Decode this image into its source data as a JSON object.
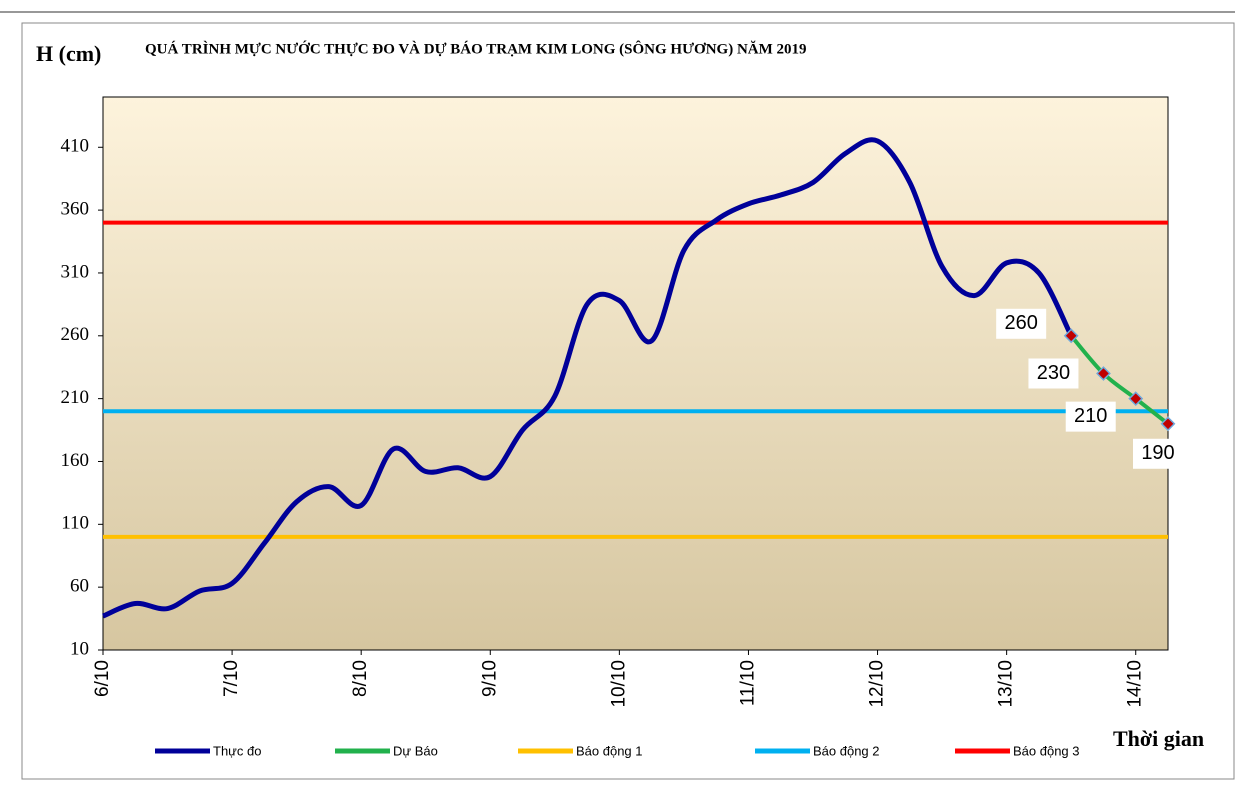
{
  "chart_data": {
    "type": "line",
    "title": "QUÁ TRÌNH MỰC NƯỚC THỰC ĐO VÀ DỰ BÁO TRẠM KIM LONG (SÔNG HƯƠNG) NĂM 2019",
    "y_label": "H (cm)",
    "x_label": "Thời gian",
    "categories": [
      "6/10",
      null,
      null,
      null,
      "7/10",
      null,
      null,
      null,
      "8/10",
      null,
      null,
      null,
      "9/10",
      null,
      null,
      null,
      "10/10",
      null,
      null,
      null,
      "11/10",
      null,
      null,
      null,
      "12/10",
      null,
      null,
      null,
      "13/10",
      null,
      null,
      null,
      "14/10",
      null
    ],
    "series": [
      {
        "name": "Thực đo",
        "color": "#000099",
        "values": [
          37,
          47,
          43,
          57,
          63,
          95,
          128,
          140,
          125,
          170,
          152,
          155,
          148,
          185,
          212,
          285,
          288,
          256,
          328,
          352,
          365,
          372,
          382,
          405,
          415,
          382,
          315,
          292,
          318,
          310,
          260,
          null,
          null,
          null
        ]
      },
      {
        "name": "Dự Báo",
        "color": "#22b14c",
        "values": [
          null,
          null,
          null,
          null,
          null,
          null,
          null,
          null,
          null,
          null,
          null,
          null,
          null,
          null,
          null,
          null,
          null,
          null,
          null,
          null,
          null,
          null,
          null,
          null,
          null,
          null,
          null,
          null,
          null,
          null,
          260,
          230,
          210,
          190
        ]
      }
    ],
    "levels": [
      {
        "name": "Báo động 1",
        "color": "#ffc000",
        "value": 100
      },
      {
        "name": "Báo động 2",
        "color": "#00b0f0",
        "value": 200
      },
      {
        "name": "Báo động 3",
        "color": "#ff0000",
        "value": 350
      }
    ],
    "ylim": [
      10,
      450
    ],
    "yticks": [
      10,
      60,
      110,
      160,
      210,
      260,
      310,
      360,
      410
    ]
  }
}
